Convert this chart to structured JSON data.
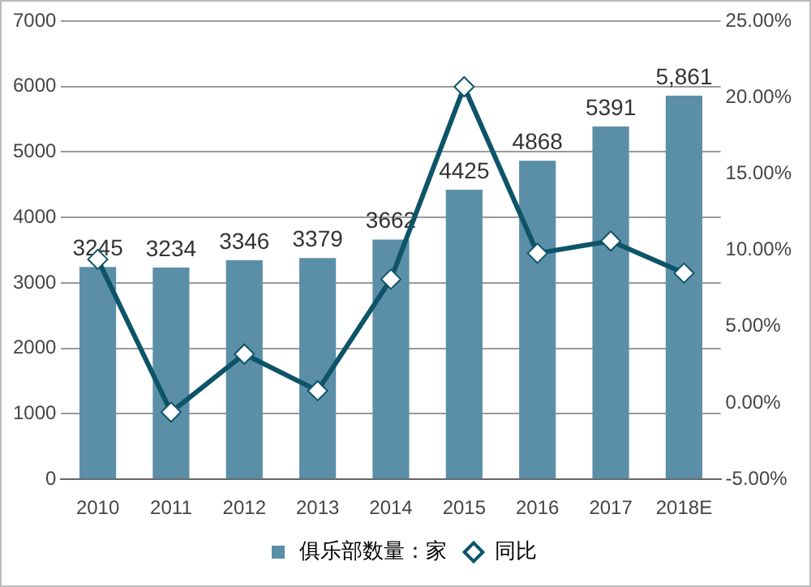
{
  "chart_data": {
    "type": "bar",
    "categories": [
      "2010",
      "2011",
      "2012",
      "2013",
      "2014",
      "2015",
      "2016",
      "2017",
      "2018E"
    ],
    "series": [
      {
        "name": "俱乐部数量：家",
        "color": "#5b8fa8",
        "values": [
          3245,
          3234,
          3346,
          3379,
          3662,
          4425,
          4868,
          5391,
          5861
        ],
        "value_labels": [
          "3245",
          "3234",
          "3346",
          "3379",
          "3662",
          "4425",
          "4868",
          "5391",
          "5,861"
        ]
      },
      {
        "name": "同比",
        "type": "line",
        "axis": "y2",
        "color": "#0e5468",
        "values": [
          9.4,
          -0.6,
          3.2,
          0.8,
          8.1,
          20.7,
          9.8,
          10.6,
          8.5
        ]
      }
    ],
    "ylim": [
      0,
      7000
    ],
    "yticks": [
      0,
      1000,
      2000,
      3000,
      4000,
      5000,
      6000,
      7000
    ],
    "y2lim": [
      -5,
      25
    ],
    "y2ticks": [
      {
        "value": -5,
        "label": "-5.00%"
      },
      {
        "value": 0,
        "label": "0.00%"
      },
      {
        "value": 5,
        "label": "5.00%"
      },
      {
        "value": 10,
        "label": "10.00%"
      },
      {
        "value": 15,
        "label": "15.00%"
      },
      {
        "value": 20,
        "label": "20.00%"
      },
      {
        "value": 25,
        "label": "25.00%"
      }
    ],
    "grid": "y",
    "legend": "bottom",
    "marker": "diamond",
    "line_style": "solid"
  }
}
